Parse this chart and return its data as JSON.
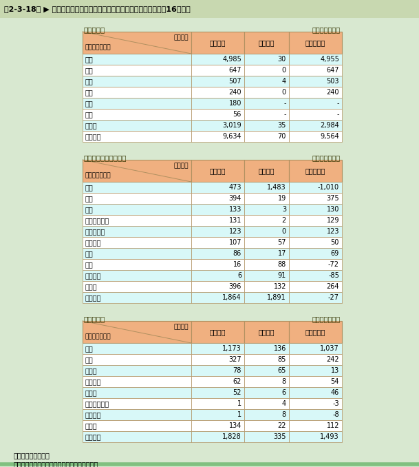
{
  "title": "第2-3-18表 ▶ 我が国の主要業種の技術貿易の国（地域）別収支（平成16年度）",
  "bg_color": "#d8e8d0",
  "header_bg": "#f0b080",
  "row_bg_light": "#d8f8f8",
  "row_bg_white": "#ffffff",
  "border_color": "#b09060",
  "title_bar_color": "#c8d8b0",
  "unit_text": "（単位：億円）",
  "note1": "注）－：該当数なし",
  "note2": "資料：総務省統計局「科学技術研究調査報告」",
  "bottom_border_color": "#80c080",
  "tables": [
    {
      "title": "自動車工業",
      "rows": [
        [
          "米国",
          "4,985",
          "30",
          "4,955"
        ],
        [
          "タイ",
          "647",
          "0",
          "647"
        ],
        [
          "英国",
          "507",
          "4",
          "503"
        ],
        [
          "中国",
          "240",
          "0",
          "240"
        ],
        [
          "台湾",
          "180",
          "-",
          "-"
        ],
        [
          "韓国",
          "56",
          "-",
          "-"
        ],
        [
          "その他",
          "3,019",
          "35",
          "2,984"
        ],
        [
          "合　　計",
          "9,634",
          "70",
          "9,564"
        ]
      ]
    },
    {
      "title": "情報通信機械器具工業",
      "rows": [
        [
          "米国",
          "473",
          "1,483",
          "-1,010"
        ],
        [
          "中国",
          "394",
          "19",
          "375"
        ],
        [
          "韓国",
          "133",
          "3",
          "130"
        ],
        [
          "シンガポール",
          "131",
          "2",
          "129"
        ],
        [
          "マレーシア",
          "123",
          "0",
          "123"
        ],
        [
          "オランダ",
          "107",
          "57",
          "50"
        ],
        [
          "台湾",
          "86",
          "17",
          "69"
        ],
        [
          "英国",
          "16",
          "88",
          "-72"
        ],
        [
          "フランス",
          "6",
          "91",
          "-85"
        ],
        [
          "その他",
          "396",
          "132",
          "264"
        ],
        [
          "合　　計",
          "1,864",
          "1,891",
          "-27"
        ]
      ]
    },
    {
      "title": "医薬品工業",
      "rows": [
        [
          "米国",
          "1,173",
          "136",
          "1,037"
        ],
        [
          "英国",
          "327",
          "85",
          "242"
        ],
        [
          "ドイツ",
          "78",
          "65",
          "13"
        ],
        [
          "フランス",
          "62",
          "8",
          "54"
        ],
        [
          "スイス",
          "52",
          "6",
          "46"
        ],
        [
          "スウェーデン",
          "1",
          "4",
          "-3"
        ],
        [
          "オランダ",
          "1",
          "8",
          "-8"
        ],
        [
          "その他",
          "134",
          "22",
          "112"
        ],
        [
          "合　　計",
          "1,828",
          "335",
          "1,493"
        ]
      ]
    }
  ]
}
